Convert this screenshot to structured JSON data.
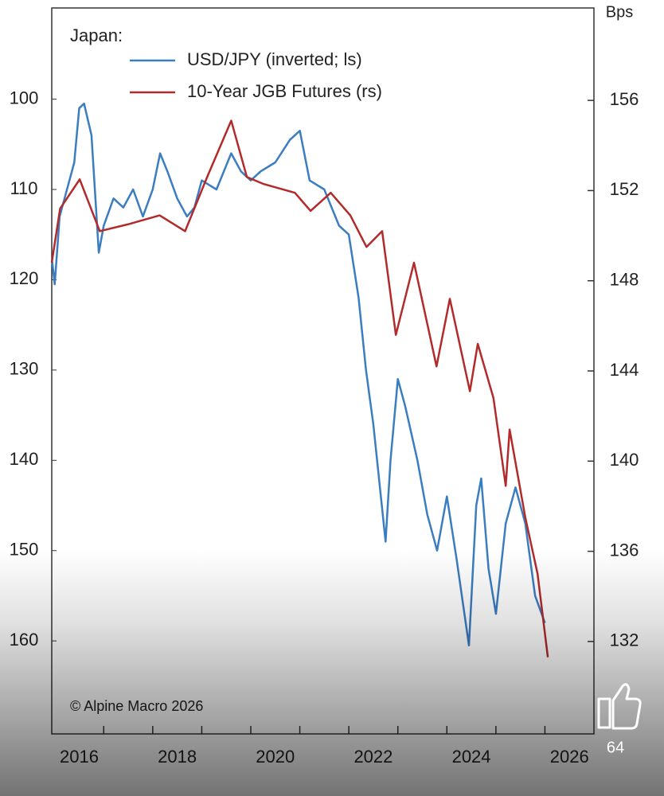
{
  "chart_data": {
    "type": "line",
    "legend_title": "Japan:",
    "y2_label": "Bps",
    "source": "© Alpine Macro 2026",
    "xlim": [
      2015.94,
      2027.0
    ],
    "xticks": [
      {
        "value": 2016.5,
        "label": "2016"
      },
      {
        "value": 2018.5,
        "label": "2018"
      },
      {
        "value": 2020.5,
        "label": "2020"
      },
      {
        "value": 2022.5,
        "label": "2022"
      },
      {
        "value": 2024.5,
        "label": "2024"
      },
      {
        "value": 2026.5,
        "label": "2026"
      }
    ],
    "xminor_ticks": [
      2017,
      2018,
      2019,
      2020,
      2021,
      2022,
      2023,
      2024,
      2025,
      2026
    ],
    "ylim": [
      89.9,
      170.3
    ],
    "y_inverted": true,
    "yticks": [
      100,
      110,
      120,
      130,
      140,
      150,
      160
    ],
    "y2lim": [
      127.9,
      160.1
    ],
    "y2ticks": [
      132,
      136,
      140,
      144,
      148,
      152,
      156
    ],
    "series": [
      {
        "name": "USD/JPY (inverted; ls)",
        "color": "#3a7dc0",
        "x": [
          2015.95,
          2016.0,
          2016.1,
          2016.3,
          2016.4,
          2016.5,
          2016.6,
          2016.75,
          2016.9,
          2017.0,
          2017.2,
          2017.4,
          2017.6,
          2017.8,
          2018.0,
          2018.15,
          2018.3,
          2018.5,
          2018.7,
          2018.85,
          2019.0,
          2019.3,
          2019.6,
          2019.8,
          2020.0,
          2020.2,
          2020.5,
          2020.8,
          2021.0,
          2021.2,
          2021.5,
          2021.8,
          2022.0,
          2022.2,
          2022.35,
          2022.5,
          2022.75,
          2022.85,
          2023.0,
          2023.15,
          2023.4,
          2023.6,
          2023.8,
          2024.0,
          2024.2,
          2024.45,
          2024.6,
          2024.7,
          2024.85,
          2025.0,
          2025.2,
          2025.4,
          2025.6,
          2025.8,
          2026.0
        ],
        "values": [
          118,
          120.5,
          113,
          109,
          107,
          101,
          100.5,
          104,
          117,
          114,
          111,
          112,
          110,
          113,
          110,
          106,
          108,
          111,
          113,
          112,
          109,
          110,
          106,
          108,
          109,
          108,
          107,
          104.5,
          103.5,
          109,
          110,
          114,
          115,
          122,
          130,
          136,
          149,
          140,
          131,
          134,
          140,
          146,
          150,
          144,
          151,
          160.5,
          145,
          142,
          152,
          157,
          147,
          143,
          147,
          155,
          158
        ]
      },
      {
        "name": "10-Year JGB Futures (rs)",
        "color": "#b22a2a",
        "axis": "y2",
        "x": [
          2015.94,
          2016.11,
          2016.51,
          2016.92,
          2017.49,
          2018.14,
          2018.66,
          2019.11,
          2019.6,
          2019.92,
          2020.25,
          2020.9,
          2021.22,
          2021.63,
          2022.03,
          2022.36,
          2022.68,
          2022.96,
          2023.33,
          2023.79,
          2024.06,
          2024.47,
          2024.63,
          2024.95,
          2025.2,
          2025.28,
          2025.6,
          2025.85,
          2026.06
        ],
        "values": [
          148.8,
          151.2,
          152.5,
          150.2,
          150.5,
          150.9,
          150.2,
          152.6,
          155.1,
          152.6,
          152.3,
          151.9,
          151.1,
          151.9,
          150.9,
          149.5,
          150.2,
          145.6,
          148.8,
          144.2,
          147.2,
          143.1,
          145.2,
          142.8,
          138.9,
          141.4,
          137.5,
          135.0,
          131.3
        ]
      }
    ]
  },
  "reactions": {
    "count": 64
  }
}
